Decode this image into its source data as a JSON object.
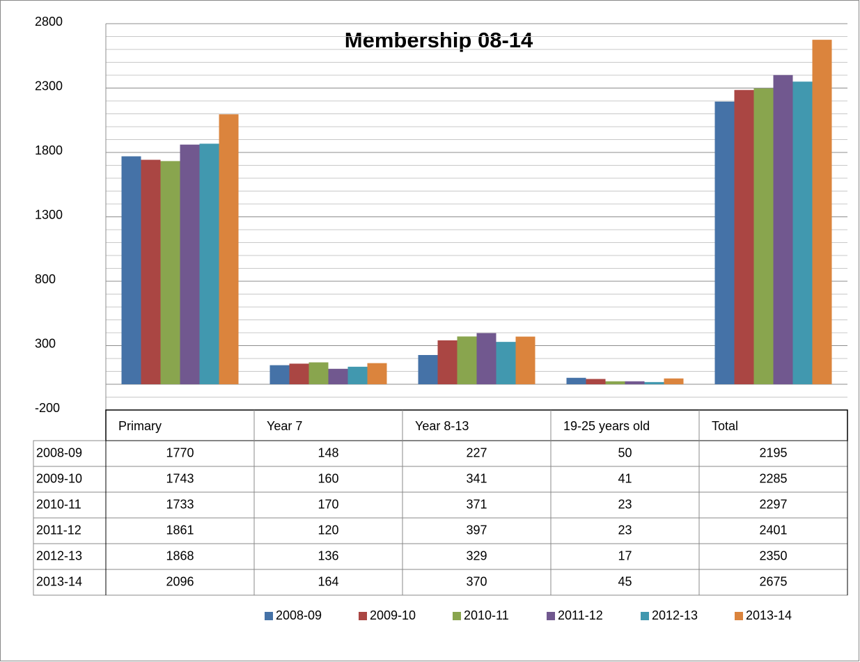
{
  "chart_data": {
    "type": "bar",
    "title": "Membership 08-14",
    "categories": [
      "Primary",
      "Year 7",
      "Year 8-13",
      "19-25 years old",
      "Total"
    ],
    "series": [
      {
        "name": "2008-09",
        "color": "#4572a7",
        "values": [
          1770,
          148,
          227,
          50,
          2195
        ]
      },
      {
        "name": "2009-10",
        "color": "#aa4643",
        "values": [
          1743,
          160,
          341,
          41,
          2285
        ]
      },
      {
        "name": "2010-11",
        "color": "#89a54e",
        "values": [
          1733,
          170,
          371,
          23,
          2297
        ]
      },
      {
        "name": "2011-12",
        "color": "#71588f",
        "values": [
          1861,
          120,
          397,
          23,
          2401
        ]
      },
      {
        "name": "2012-13",
        "color": "#4198af",
        "values": [
          1868,
          136,
          329,
          17,
          2350
        ]
      },
      {
        "name": "2013-14",
        "color": "#db843d",
        "values": [
          2096,
          164,
          370,
          45,
          2675
        ]
      }
    ],
    "ylim": [
      -200,
      2800
    ],
    "yticks": [
      -200,
      300,
      800,
      1300,
      1800,
      2300,
      2800
    ],
    "minor_yticks": [
      -100,
      0,
      100,
      200,
      400,
      500,
      600,
      700,
      900,
      1000,
      1100,
      1200,
      1400,
      1500,
      1600,
      1700,
      1900,
      2000,
      2100,
      2200,
      2400,
      2500,
      2600,
      2700
    ],
    "grid": true,
    "data_table": true,
    "legend": "bottom"
  }
}
